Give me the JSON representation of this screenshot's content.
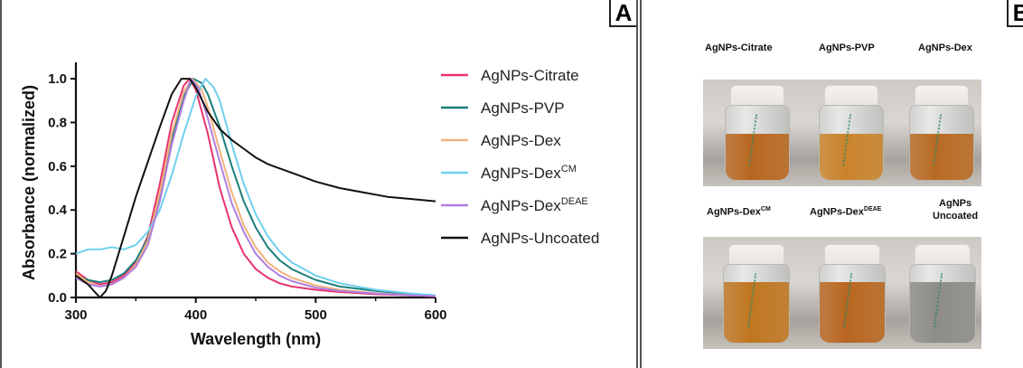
{
  "panelA": {
    "letter": "A",
    "chart_data": {
      "type": "line",
      "xlabel": "Wavelength (nm)",
      "ylabel": "Absorbance (normalized)",
      "xlim": [
        300,
        600
      ],
      "ylim": [
        0,
        1.05
      ],
      "xticks": [
        "300",
        "400",
        "500",
        "600"
      ],
      "yticks": [
        "0.0",
        "0.2",
        "0.4",
        "0.6",
        "0.8",
        "1.0"
      ],
      "legend_position": "right",
      "series": [
        {
          "name": "AgNPs-Citrate",
          "color": "#e8336d",
          "points": [
            [
              300,
              0.12
            ],
            [
              310,
              0.08
            ],
            [
              320,
              0.06
            ],
            [
              330,
              0.07
            ],
            [
              340,
              0.1
            ],
            [
              350,
              0.16
            ],
            [
              360,
              0.28
            ],
            [
              370,
              0.52
            ],
            [
              380,
              0.8
            ],
            [
              390,
              0.97
            ],
            [
              395,
              1.0
            ],
            [
              400,
              0.95
            ],
            [
              410,
              0.75
            ],
            [
              420,
              0.5
            ],
            [
              430,
              0.32
            ],
            [
              440,
              0.2
            ],
            [
              450,
              0.13
            ],
            [
              460,
              0.09
            ],
            [
              470,
              0.065
            ],
            [
              480,
              0.05
            ],
            [
              500,
              0.035
            ],
            [
              520,
              0.025
            ],
            [
              550,
              0.015
            ],
            [
              580,
              0.01
            ],
            [
              600,
              0.005
            ]
          ]
        },
        {
          "name": "AgNPs-PVP",
          "color": "#1a7f7a",
          "points": [
            [
              300,
              0.1
            ],
            [
              310,
              0.08
            ],
            [
              320,
              0.07
            ],
            [
              330,
              0.08
            ],
            [
              340,
              0.11
            ],
            [
              350,
              0.17
            ],
            [
              360,
              0.27
            ],
            [
              370,
              0.47
            ],
            [
              380,
              0.72
            ],
            [
              390,
              0.92
            ],
            [
              398,
              1.0
            ],
            [
              405,
              0.98
            ],
            [
              410,
              0.93
            ],
            [
              420,
              0.78
            ],
            [
              430,
              0.6
            ],
            [
              440,
              0.44
            ],
            [
              450,
              0.32
            ],
            [
              460,
              0.23
            ],
            [
              470,
              0.17
            ],
            [
              480,
              0.13
            ],
            [
              500,
              0.08
            ],
            [
              520,
              0.05
            ],
            [
              550,
              0.03
            ],
            [
              580,
              0.015
            ],
            [
              600,
              0.01
            ]
          ]
        },
        {
          "name": "AgNPs-Dex",
          "color": "#f0b27a",
          "points": [
            [
              300,
              0.11
            ],
            [
              310,
              0.07
            ],
            [
              320,
              0.05
            ],
            [
              330,
              0.06
            ],
            [
              340,
              0.09
            ],
            [
              350,
              0.15
            ],
            [
              360,
              0.26
            ],
            [
              370,
              0.48
            ],
            [
              380,
              0.75
            ],
            [
              390,
              0.94
            ],
            [
              397,
              1.0
            ],
            [
              405,
              0.95
            ],
            [
              410,
              0.87
            ],
            [
              420,
              0.67
            ],
            [
              430,
              0.48
            ],
            [
              440,
              0.33
            ],
            [
              450,
              0.23
            ],
            [
              460,
              0.16
            ],
            [
              470,
              0.12
            ],
            [
              480,
              0.09
            ],
            [
              500,
              0.055
            ],
            [
              520,
              0.035
            ],
            [
              550,
              0.02
            ],
            [
              580,
              0.01
            ],
            [
              600,
              0.008
            ]
          ]
        },
        {
          "name": "AgNPs-Dex",
          "sup": "CM",
          "color": "#6fd0ee",
          "points": [
            [
              300,
              0.2
            ],
            [
              310,
              0.22
            ],
            [
              320,
              0.22
            ],
            [
              330,
              0.23
            ],
            [
              340,
              0.22
            ],
            [
              350,
              0.24
            ],
            [
              360,
              0.3
            ],
            [
              370,
              0.4
            ],
            [
              380,
              0.56
            ],
            [
              390,
              0.75
            ],
            [
              400,
              0.92
            ],
            [
              408,
              1.0
            ],
            [
              415,
              0.96
            ],
            [
              420,
              0.9
            ],
            [
              430,
              0.7
            ],
            [
              440,
              0.52
            ],
            [
              450,
              0.38
            ],
            [
              460,
              0.28
            ],
            [
              470,
              0.21
            ],
            [
              480,
              0.16
            ],
            [
              500,
              0.1
            ],
            [
              520,
              0.065
            ],
            [
              550,
              0.035
            ],
            [
              580,
              0.018
            ],
            [
              600,
              0.01
            ]
          ]
        },
        {
          "name": "AgNPs-Dex",
          "sup": "DEAE",
          "color": "#b07ee0",
          "points": [
            [
              300,
              0.09
            ],
            [
              310,
              0.06
            ],
            [
              320,
              0.05
            ],
            [
              330,
              0.06
            ],
            [
              340,
              0.09
            ],
            [
              350,
              0.14
            ],
            [
              360,
              0.24
            ],
            [
              370,
              0.44
            ],
            [
              380,
              0.7
            ],
            [
              390,
              0.9
            ],
            [
              396,
              1.0
            ],
            [
              402,
              0.96
            ],
            [
              410,
              0.82
            ],
            [
              420,
              0.62
            ],
            [
              430,
              0.43
            ],
            [
              440,
              0.3
            ],
            [
              450,
              0.2
            ],
            [
              460,
              0.14
            ],
            [
              470,
              0.1
            ],
            [
              480,
              0.075
            ],
            [
              500,
              0.045
            ],
            [
              520,
              0.03
            ],
            [
              550,
              0.018
            ],
            [
              580,
              0.01
            ],
            [
              600,
              0.006
            ]
          ]
        },
        {
          "name": "AgNPs-Uncoated",
          "color": "#111111",
          "points": [
            [
              300,
              0.1
            ],
            [
              310,
              0.06
            ],
            [
              320,
              0.0
            ],
            [
              325,
              0.03
            ],
            [
              330,
              0.1
            ],
            [
              340,
              0.28
            ],
            [
              350,
              0.46
            ],
            [
              360,
              0.62
            ],
            [
              370,
              0.78
            ],
            [
              380,
              0.93
            ],
            [
              388,
              1.0
            ],
            [
              395,
              1.0
            ],
            [
              400,
              0.96
            ],
            [
              410,
              0.85
            ],
            [
              420,
              0.77
            ],
            [
              430,
              0.72
            ],
            [
              440,
              0.68
            ],
            [
              450,
              0.64
            ],
            [
              460,
              0.61
            ],
            [
              470,
              0.59
            ],
            [
              480,
              0.57
            ],
            [
              500,
              0.53
            ],
            [
              520,
              0.5
            ],
            [
              540,
              0.48
            ],
            [
              560,
              0.46
            ],
            [
              580,
              0.45
            ],
            [
              600,
              0.44
            ]
          ]
        }
      ]
    }
  },
  "panelB": {
    "letter": "B",
    "top_labels": [
      "AgNPs-Citrate",
      "AgNPs-PVP",
      "AgNPs-Dex"
    ],
    "bottom_labels": [
      {
        "base": "AgNPs-Dex",
        "sup": "CM"
      },
      {
        "base": "AgNPs-Dex",
        "sup": "DEAE"
      },
      {
        "line1": "AgNPs",
        "line2": "Uncoated"
      }
    ],
    "jar_colors_top": [
      "#b8661f",
      "#c9832a",
      "#b86a22"
    ],
    "jar_colors_bottom": [
      "#c0761f",
      "#b8661f",
      "#8e8c86"
    ]
  }
}
